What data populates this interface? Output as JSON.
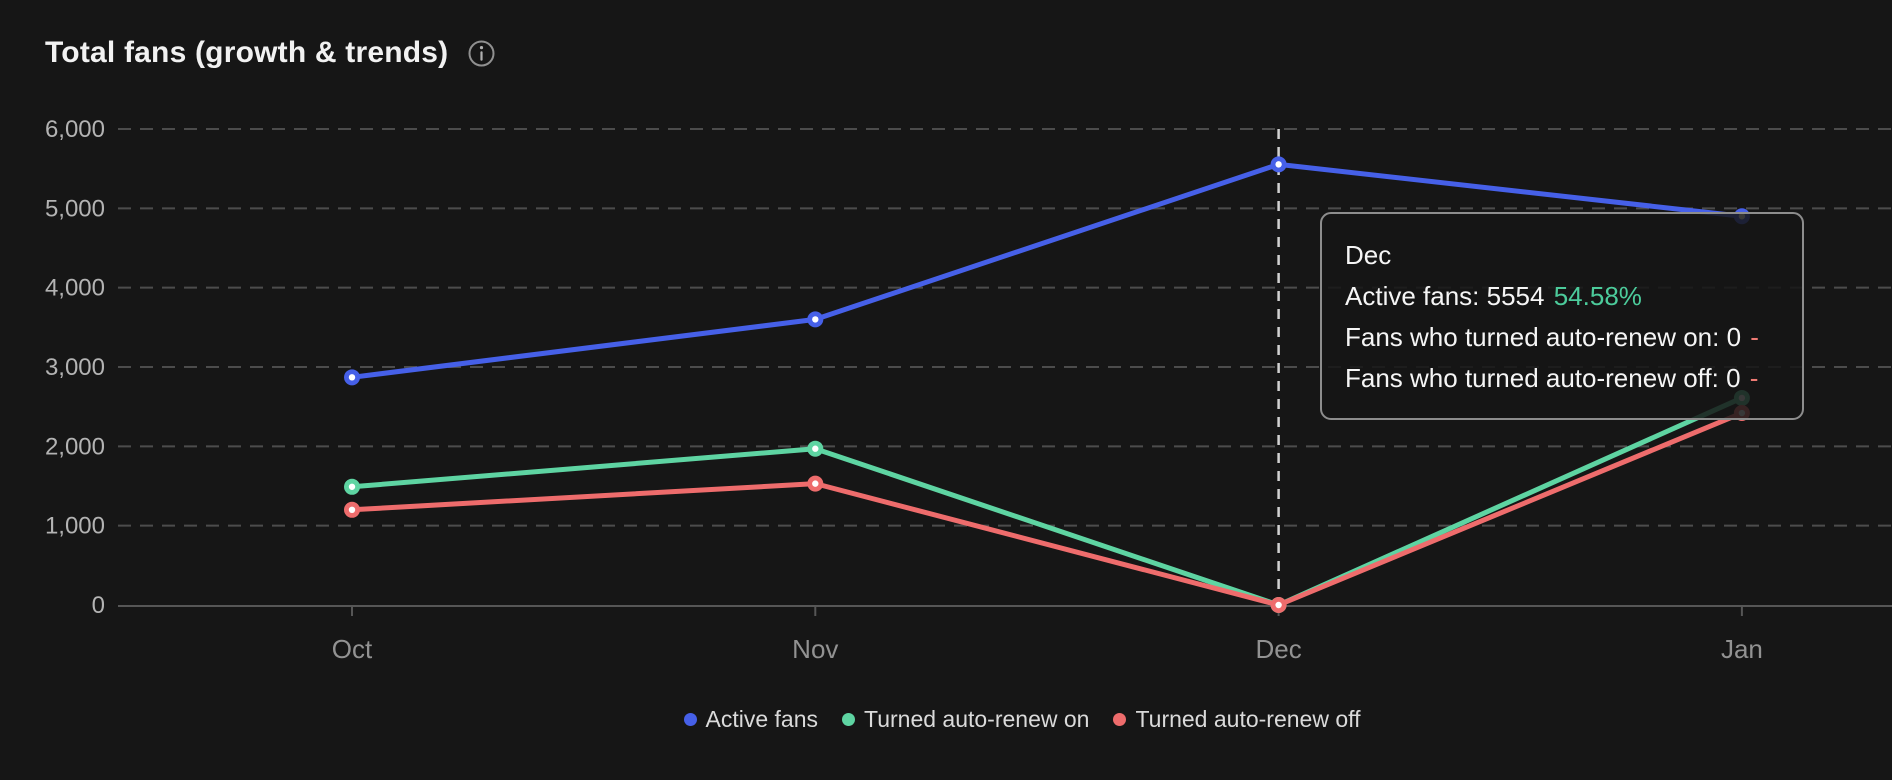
{
  "header": {
    "title": "Total fans (growth & trends)"
  },
  "chart_data": {
    "type": "line",
    "categories": [
      "Oct",
      "Nov",
      "Dec",
      "Jan"
    ],
    "series": [
      {
        "name": "Active fans",
        "color": "#4660e8",
        "values": [
          2870,
          3600,
          5554,
          4900
        ]
      },
      {
        "name": "Turned auto-renew on",
        "color": "#5ed4a2",
        "values": [
          1490,
          1970,
          0,
          2610
        ]
      },
      {
        "name": "Turned auto-renew off",
        "color": "#ee6c6c",
        "values": [
          1200,
          1530,
          0,
          2420
        ]
      }
    ],
    "ylim": [
      0,
      6000
    ],
    "y_tick_labels": [
      "0",
      "1,000",
      "2,000",
      "3,000",
      "4,000",
      "5,000",
      "6,000"
    ],
    "grid": "horizontal-dashed",
    "legend_position": "bottom",
    "highlighted_category": "Dec"
  },
  "tooltip": {
    "title": "Dec",
    "rows": [
      {
        "label": "Active fans:",
        "value": "5554",
        "delta": "54.58%",
        "delta_color": "#4ccb9b"
      },
      {
        "label": "Fans who turned auto-renew on:",
        "value": "0",
        "delta": "-",
        "delta_color": "#ee7b74"
      },
      {
        "label": "Fans who turned auto-renew off:",
        "value": "0",
        "delta": "-",
        "delta_color": "#ee7b74"
      }
    ]
  },
  "icons": {
    "info": "info-icon"
  }
}
